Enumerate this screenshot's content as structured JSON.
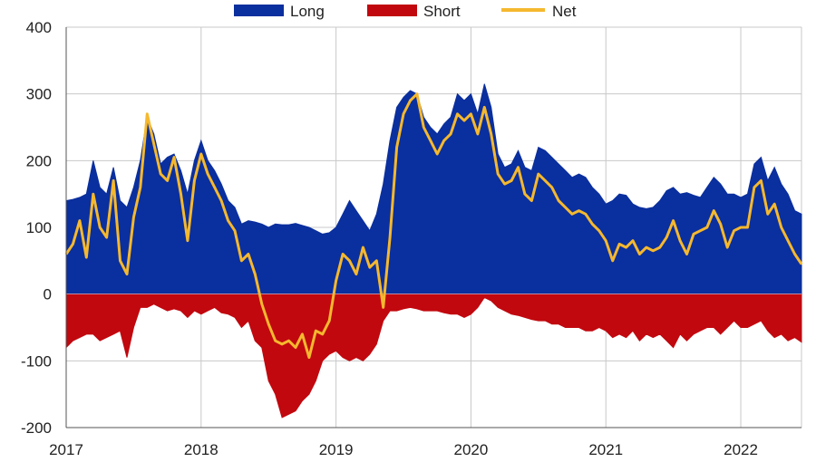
{
  "chart_data": {
    "type": "area",
    "title": "",
    "xlabel": "",
    "ylabel": "",
    "ylim": [
      -200,
      400
    ],
    "xlim": [
      2017.0,
      2022.45
    ],
    "yticks": [
      400,
      300,
      200,
      100,
      0,
      -100,
      -200
    ],
    "xticks": [
      2017,
      2018,
      2019,
      2020,
      2021,
      2022
    ],
    "grid": true,
    "legend_position": "top",
    "colors": {
      "Long": "#0a2f9e",
      "Short": "#c1080f",
      "Net": "#f5b82e"
    },
    "legend": [
      "Long",
      "Short",
      "Net"
    ],
    "series": [
      {
        "name": "Long",
        "x": [
          2017.0,
          2017.05,
          2017.1,
          2017.15,
          2017.2,
          2017.25,
          2017.3,
          2017.35,
          2017.4,
          2017.45,
          2017.5,
          2017.55,
          2017.6,
          2017.65,
          2017.7,
          2017.75,
          2017.8,
          2017.85,
          2017.9,
          2017.95,
          2018.0,
          2018.05,
          2018.1,
          2018.15,
          2018.2,
          2018.25,
          2018.3,
          2018.35,
          2018.4,
          2018.45,
          2018.5,
          2018.55,
          2018.6,
          2018.65,
          2018.7,
          2018.75,
          2018.8,
          2018.85,
          2018.9,
          2018.95,
          2019.0,
          2019.05,
          2019.1,
          2019.15,
          2019.2,
          2019.25,
          2019.3,
          2019.35,
          2019.4,
          2019.45,
          2019.5,
          2019.55,
          2019.6,
          2019.65,
          2019.7,
          2019.75,
          2019.8,
          2019.85,
          2019.9,
          2019.95,
          2020.0,
          2020.05,
          2020.1,
          2020.15,
          2020.2,
          2020.25,
          2020.3,
          2020.35,
          2020.4,
          2020.45,
          2020.5,
          2020.55,
          2020.6,
          2020.65,
          2020.7,
          2020.75,
          2020.8,
          2020.85,
          2020.9,
          2020.95,
          2021.0,
          2021.05,
          2021.1,
          2021.15,
          2021.2,
          2021.25,
          2021.3,
          2021.35,
          2021.4,
          2021.45,
          2021.5,
          2021.55,
          2021.6,
          2021.65,
          2021.7,
          2021.75,
          2021.8,
          2021.85,
          2021.9,
          2021.95,
          2022.0,
          2022.05,
          2022.1,
          2022.15,
          2022.2,
          2022.25,
          2022.3,
          2022.35,
          2022.4,
          2022.45
        ],
        "values": [
          140,
          142,
          145,
          150,
          200,
          160,
          150,
          190,
          140,
          130,
          160,
          200,
          265,
          240,
          195,
          205,
          210,
          185,
          150,
          200,
          230,
          200,
          185,
          165,
          140,
          130,
          105,
          110,
          108,
          105,
          100,
          105,
          104,
          104,
          106,
          103,
          100,
          95,
          90,
          92,
          100,
          120,
          140,
          125,
          110,
          95,
          120,
          165,
          230,
          280,
          295,
          305,
          300,
          265,
          250,
          240,
          255,
          265,
          300,
          290,
          300,
          270,
          315,
          280,
          210,
          190,
          195,
          215,
          190,
          185,
          220,
          215,
          205,
          195,
          185,
          175,
          180,
          175,
          160,
          150,
          135,
          140,
          150,
          148,
          135,
          130,
          128,
          130,
          140,
          155,
          160,
          150,
          152,
          148,
          145,
          160,
          175,
          165,
          150,
          150,
          145,
          150,
          195,
          205,
          170,
          190,
          165,
          150,
          125,
          120
        ]
      },
      {
        "name": "Short",
        "x": [
          2017.0,
          2017.05,
          2017.1,
          2017.15,
          2017.2,
          2017.25,
          2017.3,
          2017.35,
          2017.4,
          2017.45,
          2017.5,
          2017.55,
          2017.6,
          2017.65,
          2017.7,
          2017.75,
          2017.8,
          2017.85,
          2017.9,
          2017.95,
          2018.0,
          2018.05,
          2018.1,
          2018.15,
          2018.2,
          2018.25,
          2018.3,
          2018.35,
          2018.4,
          2018.45,
          2018.5,
          2018.55,
          2018.6,
          2018.65,
          2018.7,
          2018.75,
          2018.8,
          2018.85,
          2018.9,
          2018.95,
          2019.0,
          2019.05,
          2019.1,
          2019.15,
          2019.2,
          2019.25,
          2019.3,
          2019.35,
          2019.4,
          2019.45,
          2019.5,
          2019.55,
          2019.6,
          2019.65,
          2019.7,
          2019.75,
          2019.8,
          2019.85,
          2019.9,
          2019.95,
          2020.0,
          2020.05,
          2020.1,
          2020.15,
          2020.2,
          2020.25,
          2020.3,
          2020.35,
          2020.4,
          2020.45,
          2020.5,
          2020.55,
          2020.6,
          2020.65,
          2020.7,
          2020.75,
          2020.8,
          2020.85,
          2020.9,
          2020.95,
          2021.0,
          2021.05,
          2021.1,
          2021.15,
          2021.2,
          2021.25,
          2021.3,
          2021.35,
          2021.4,
          2021.45,
          2021.5,
          2021.55,
          2021.6,
          2021.65,
          2021.7,
          2021.75,
          2021.8,
          2021.85,
          2021.9,
          2021.95,
          2022.0,
          2022.05,
          2022.1,
          2022.15,
          2022.2,
          2022.25,
          2022.3,
          2022.35,
          2022.4,
          2022.45
        ],
        "values": [
          -80,
          -70,
          -65,
          -60,
          -60,
          -70,
          -65,
          -60,
          -55,
          -95,
          -50,
          -20,
          -20,
          -15,
          -20,
          -25,
          -22,
          -25,
          -35,
          -25,
          -30,
          -25,
          -20,
          -28,
          -30,
          -35,
          -50,
          -40,
          -70,
          -80,
          -130,
          -150,
          -185,
          -180,
          -175,
          -160,
          -150,
          -130,
          -100,
          -90,
          -85,
          -95,
          -100,
          -95,
          -100,
          -90,
          -75,
          -40,
          -25,
          -25,
          -22,
          -20,
          -22,
          -25,
          -25,
          -25,
          -28,
          -30,
          -30,
          -35,
          -30,
          -20,
          -5,
          -10,
          -20,
          -25,
          -30,
          -32,
          -35,
          -38,
          -40,
          -40,
          -45,
          -45,
          -50,
          -50,
          -50,
          -55,
          -55,
          -50,
          -55,
          -65,
          -60,
          -65,
          -55,
          -70,
          -60,
          -65,
          -60,
          -70,
          -80,
          -60,
          -70,
          -60,
          -55,
          -50,
          -50,
          -60,
          -50,
          -40,
          -50,
          -50,
          -45,
          -40,
          -55,
          -65,
          -60,
          -70,
          -65,
          -72
        ]
      },
      {
        "name": "Net",
        "x": [
          2017.0,
          2017.05,
          2017.1,
          2017.15,
          2017.2,
          2017.25,
          2017.3,
          2017.35,
          2017.4,
          2017.45,
          2017.5,
          2017.55,
          2017.6,
          2017.65,
          2017.7,
          2017.75,
          2017.8,
          2017.85,
          2017.9,
          2017.95,
          2018.0,
          2018.05,
          2018.1,
          2018.15,
          2018.2,
          2018.25,
          2018.3,
          2018.35,
          2018.4,
          2018.45,
          2018.5,
          2018.55,
          2018.6,
          2018.65,
          2018.7,
          2018.75,
          2018.8,
          2018.85,
          2018.9,
          2018.95,
          2019.0,
          2019.05,
          2019.1,
          2019.15,
          2019.2,
          2019.25,
          2019.3,
          2019.35,
          2019.4,
          2019.45,
          2019.5,
          2019.55,
          2019.6,
          2019.65,
          2019.7,
          2019.75,
          2019.8,
          2019.85,
          2019.9,
          2019.95,
          2020.0,
          2020.05,
          2020.1,
          2020.15,
          2020.2,
          2020.25,
          2020.3,
          2020.35,
          2020.4,
          2020.45,
          2020.5,
          2020.55,
          2020.6,
          2020.65,
          2020.7,
          2020.75,
          2020.8,
          2020.85,
          2020.9,
          2020.95,
          2021.0,
          2021.05,
          2021.1,
          2021.15,
          2021.2,
          2021.25,
          2021.3,
          2021.35,
          2021.4,
          2021.45,
          2021.5,
          2021.55,
          2021.6,
          2021.65,
          2021.7,
          2021.75,
          2021.8,
          2021.85,
          2021.9,
          2021.95,
          2022.0,
          2022.05,
          2022.1,
          2022.15,
          2022.2,
          2022.25,
          2022.3,
          2022.35,
          2022.4,
          2022.45
        ],
        "values": [
          60,
          75,
          110,
          55,
          150,
          100,
          85,
          170,
          50,
          30,
          115,
          160,
          270,
          225,
          180,
          170,
          205,
          150,
          80,
          170,
          210,
          180,
          160,
          140,
          110,
          95,
          50,
          60,
          30,
          -15,
          -45,
          -70,
          -75,
          -70,
          -80,
          -60,
          -95,
          -55,
          -60,
          -40,
          20,
          60,
          50,
          30,
          70,
          40,
          50,
          -20,
          85,
          220,
          270,
          290,
          300,
          250,
          230,
          210,
          230,
          240,
          270,
          260,
          270,
          240,
          280,
          240,
          180,
          165,
          170,
          190,
          150,
          140,
          180,
          170,
          160,
          140,
          130,
          120,
          125,
          120,
          105,
          95,
          80,
          50,
          75,
          70,
          80,
          60,
          70,
          65,
          70,
          85,
          110,
          80,
          60,
          90,
          95,
          100,
          125,
          105,
          70,
          95,
          100,
          100,
          160,
          170,
          120,
          135,
          100,
          80,
          60,
          45
        ]
      }
    ]
  }
}
